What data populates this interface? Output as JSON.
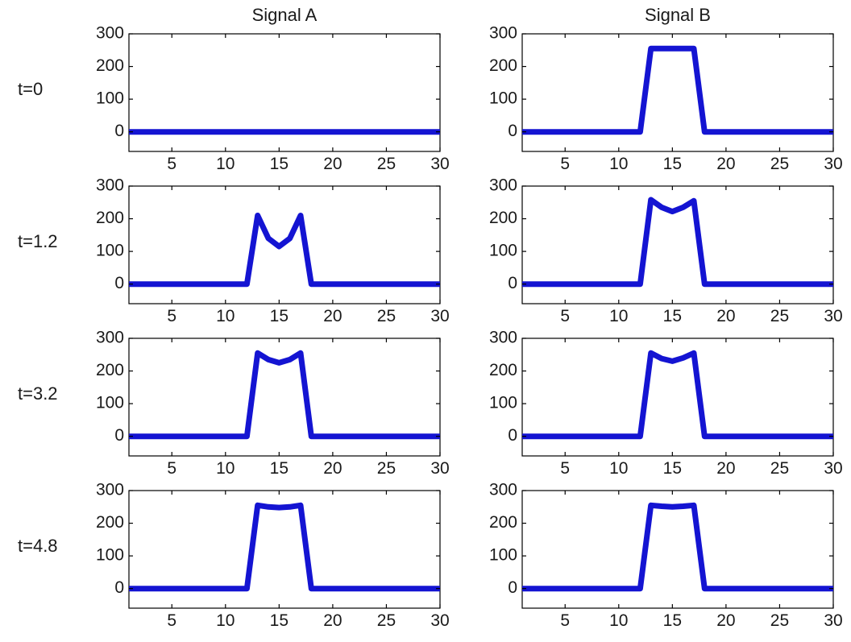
{
  "colors": {
    "line": "#1414d2",
    "axes": "#000000",
    "background": "#ffffff"
  },
  "chart_data": {
    "type": "line",
    "layout": "4x2 grid of subplots",
    "column_titles": [
      "Signal A",
      "Signal B"
    ],
    "row_labels": [
      "t=0",
      "t=1.2",
      "t=3.2",
      "t=4.8"
    ],
    "xlim": [
      1,
      30
    ],
    "ylim": [
      -60,
      300
    ],
    "x_ticks": [
      5,
      10,
      15,
      20,
      25,
      30
    ],
    "y_ticks": [
      0,
      100,
      200,
      300
    ],
    "grid": false,
    "x": [
      1,
      12,
      13,
      14,
      15,
      16,
      17,
      18,
      30
    ],
    "panels": [
      {
        "row": 0,
        "col": 0,
        "y": [
          0,
          0,
          0,
          0,
          0,
          0,
          0,
          0,
          0
        ]
      },
      {
        "row": 0,
        "col": 1,
        "y": [
          0,
          0,
          255,
          255,
          255,
          255,
          255,
          0,
          0
        ]
      },
      {
        "row": 1,
        "col": 0,
        "y": [
          0,
          0,
          210,
          140,
          115,
          140,
          210,
          0,
          0
        ]
      },
      {
        "row": 1,
        "col": 1,
        "y": [
          0,
          0,
          258,
          235,
          222,
          235,
          255,
          0,
          0
        ]
      },
      {
        "row": 2,
        "col": 0,
        "y": [
          0,
          0,
          255,
          235,
          225,
          235,
          255,
          0,
          0
        ]
      },
      {
        "row": 2,
        "col": 1,
        "y": [
          0,
          0,
          255,
          238,
          230,
          240,
          255,
          0,
          0
        ]
      },
      {
        "row": 3,
        "col": 0,
        "y": [
          0,
          0,
          255,
          250,
          248,
          250,
          255,
          0,
          0
        ]
      },
      {
        "row": 3,
        "col": 1,
        "y": [
          0,
          0,
          255,
          252,
          250,
          252,
          255,
          0,
          0
        ]
      }
    ]
  }
}
